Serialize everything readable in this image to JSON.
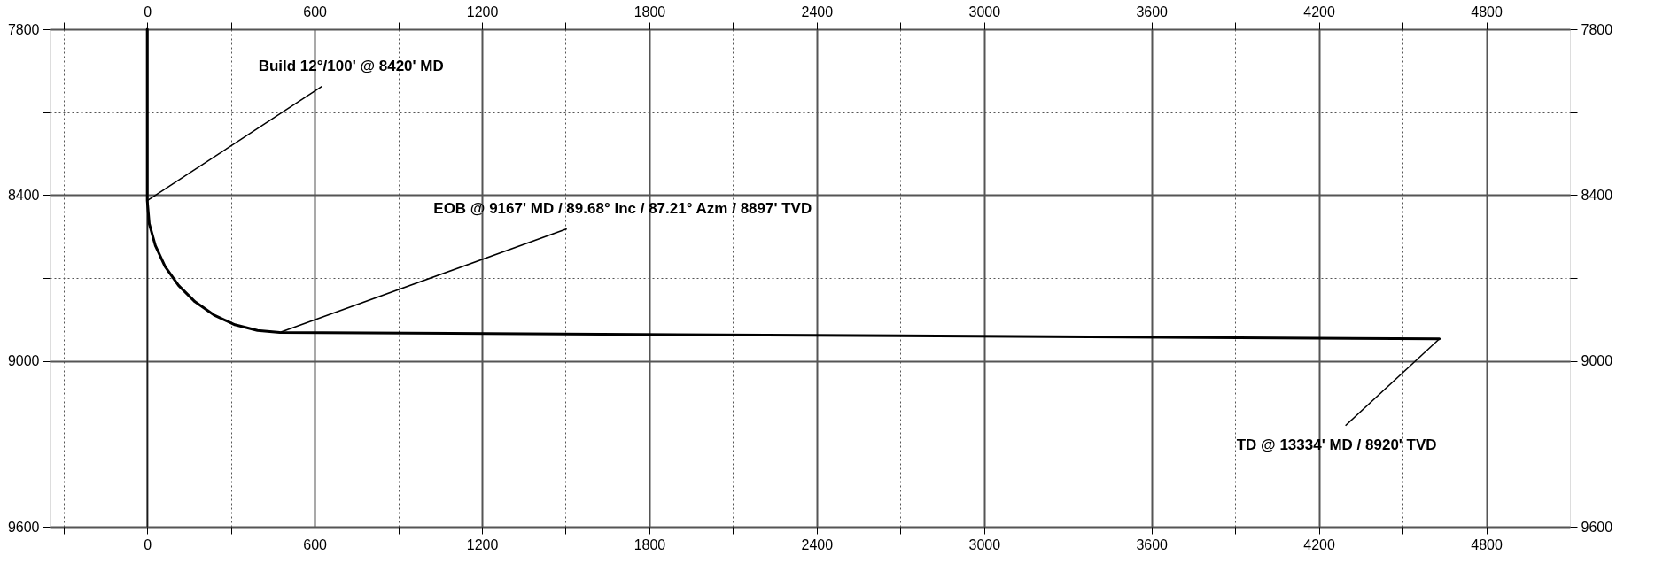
{
  "chart_data": {
    "type": "line",
    "x": [
      0,
      0,
      7,
      29,
      64,
      112,
      171,
      239,
      314,
      395,
      475,
      4632
    ],
    "series": [
      {
        "color": "#000000",
        "values": [
          7800,
          8420,
          8503,
          8583,
          8659,
          8727,
          8786,
          8834,
          8869,
          8890,
          8897,
          8920
        ]
      }
    ],
    "xlim": [
      -350,
      5100
    ],
    "xticks": [
      {
        "value": -300,
        "label": null
      },
      0,
      {
        "value": 300,
        "label": null
      },
      600,
      {
        "value": 900,
        "label": null
      },
      1200,
      {
        "value": 1500,
        "label": null
      },
      1800,
      {
        "value": 2100,
        "label": null
      },
      2400,
      {
        "value": 2700,
        "label": null
      },
      3000,
      {
        "value": 3300,
        "label": null
      },
      3600,
      {
        "value": 3900,
        "label": null
      },
      4200,
      {
        "value": 4500,
        "label": null
      },
      4800
    ],
    "x2lim": [
      -350,
      5100
    ],
    "x2ticks": [
      {
        "value": -300,
        "label": null
      },
      0,
      {
        "value": 300,
        "label": null
      },
      600,
      {
        "value": 900,
        "label": null
      },
      1200,
      {
        "value": 1500,
        "label": null
      },
      1800,
      {
        "value": 2100,
        "label": null
      },
      2400,
      {
        "value": 2700,
        "label": null
      },
      3000,
      {
        "value": 3300,
        "label": null
      },
      3600,
      {
        "value": 3900,
        "label": null
      },
      4200,
      {
        "value": 4500,
        "label": null
      },
      4800
    ],
    "ylim": [
      9600,
      7800
    ],
    "yticks": [
      7800,
      {
        "value": 8100,
        "label": null
      },
      8400,
      {
        "value": 8700,
        "label": null
      },
      9000,
      {
        "value": 9300,
        "label": null
      },
      9600
    ],
    "y2lim": [
      9600,
      7800
    ],
    "y2ticks": [
      7800,
      {
        "value": 8100,
        "label": null
      },
      8400,
      {
        "value": 8700,
        "label": null
      },
      9000,
      {
        "value": 9300,
        "label": null
      },
      9600
    ],
    "grid": true,
    "legend": false,
    "marker": "none",
    "line_style": "solid",
    "ref_lines": [
      {
        "axis": "x",
        "value": 0,
        "color": "#000000"
      }
    ],
    "annotations": [
      {
        "text": "Build 12°/100' @ 8420' MD",
        "x": 0,
        "y": 8420
      },
      {
        "text": "EOB @ 9167' MD / 89.68° Inc / 87.21° Azm / 8897' TVD",
        "x": 475,
        "y": 8897
      },
      {
        "text": "TD @ 13334' MD / 8920' TVD",
        "x": 4632,
        "y": 8920
      }
    ]
  }
}
